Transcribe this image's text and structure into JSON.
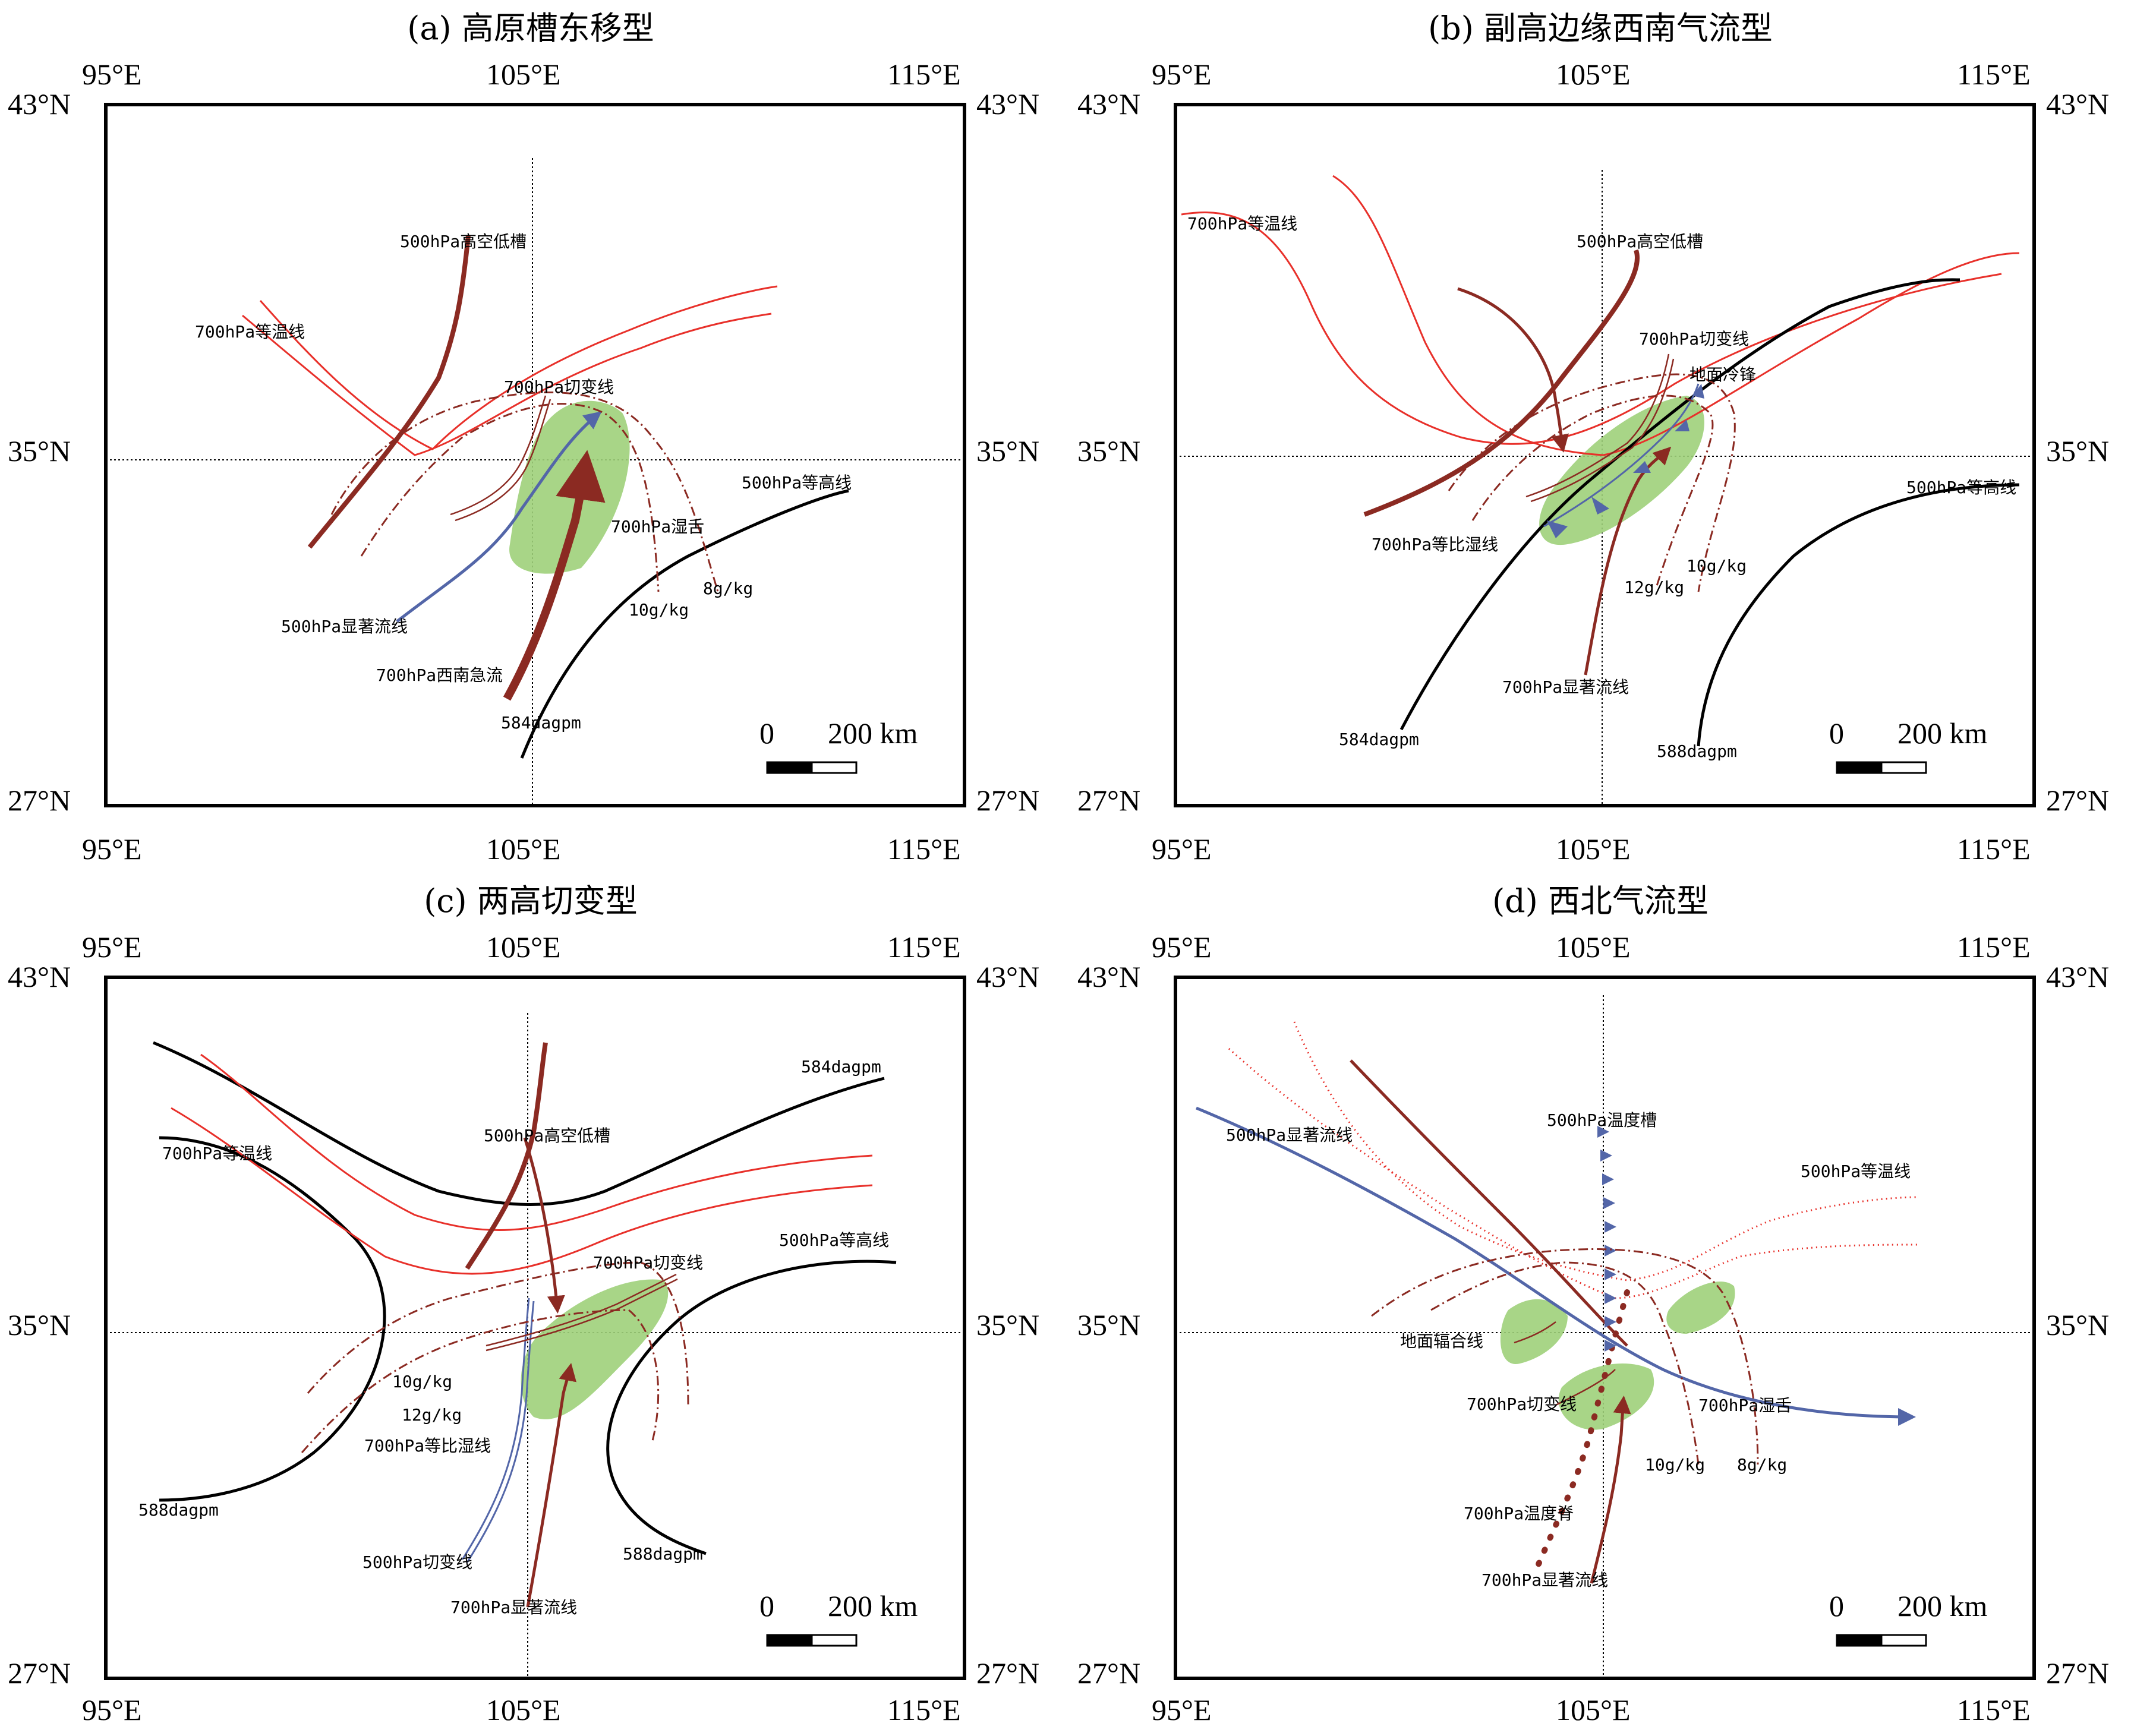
{
  "panels": [
    {
      "title": "(a) 高原槽东移型",
      "labels": {
        "trough500": "500hPa高空低槽",
        "isotherm700": "700hPa等温线",
        "shear700": "700hPa切变线",
        "isohypse500": "500hPa等高线",
        "moist_tongue700": "700hPa湿舌",
        "streamline500": "500hPa显著流线",
        "sw_jet700": "700hPa西南急流",
        "q10": "10g/kg",
        "q8": "8g/kg",
        "h584": "584dagpm"
      }
    },
    {
      "title": "(b) 副高边缘西南气流型",
      "labels": {
        "isotherm700": "700hPa等温线",
        "trough500": "500hPa高空低槽",
        "shear700": "700hPa切变线",
        "cold_front": "地面冷锋",
        "isohypse500": "500hPa等高线",
        "isoq700": "700hPa等比湿线",
        "q10": "10g/kg",
        "q12": "12g/kg",
        "streamline700": "700hPa显著流线",
        "h584": "584dagpm",
        "h588": "588dagpm"
      }
    },
    {
      "title": "(c) 两高切变型",
      "labels": {
        "h584": "584dagpm",
        "trough500": "500hPa高空低槽",
        "isotherm700": "700hPa等温线",
        "shear700": "700hPa切变线",
        "isohypse500": "500hPa等高线",
        "q10": "10g/kg",
        "q12": "12g/kg",
        "isoq700": "700hPa等比湿线",
        "h588a": "588dagpm",
        "shear500": "500hPa切变线",
        "h588b": "588dagpm",
        "streamline700": "700hPa显著流线"
      }
    },
    {
      "title": "(d) 西北气流型",
      "labels": {
        "temp_trough500": "500hPa温度槽",
        "streamline500": "500hPa显著流线",
        "isotherm500": "500hPa等温线",
        "convergence": "地面辐合线",
        "shear700": "700hPa切变线",
        "moist_tongue700": "700hPa湿舌",
        "q10": "10g/kg",
        "q8": "8g/kg",
        "temp_ridge700": "700hPa温度脊",
        "streamline700": "700hPa显著流线"
      }
    }
  ],
  "axes": {
    "lon": [
      "95°E",
      "105°E",
      "115°E"
    ],
    "lat": [
      "43°N",
      "35°N",
      "27°N"
    ]
  },
  "scale_bar": {
    "zero": "0",
    "distance": "200 km"
  },
  "colors": {
    "isotherm": "#e8302a",
    "isohypse": "#000000",
    "trough_jet": "#8b2a22",
    "streamline": "#5366a8",
    "moist_area": "#9fd07a"
  }
}
